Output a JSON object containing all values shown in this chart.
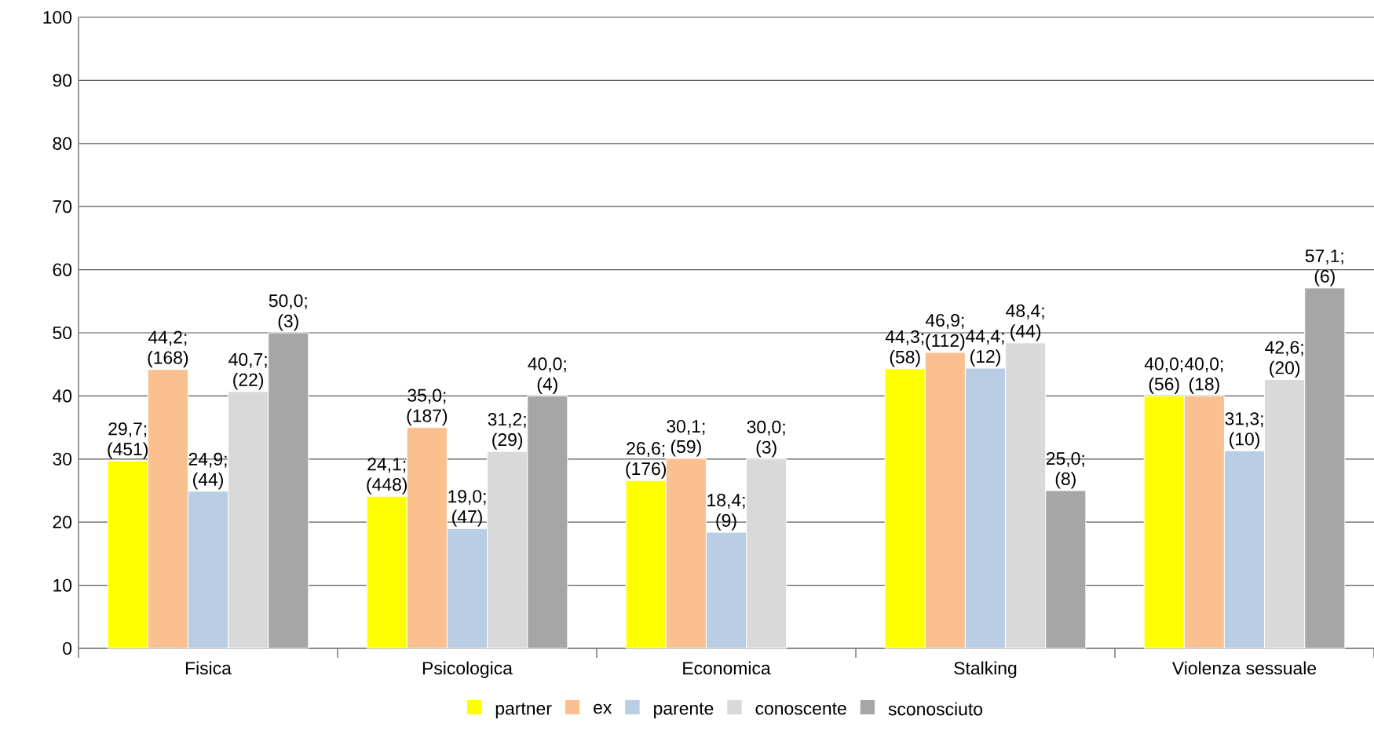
{
  "chart_data": {
    "type": "bar",
    "categories": [
      "Fisica",
      "Psicologica",
      "Economica",
      "Stalking",
      "Violenza sessuale"
    ],
    "series": [
      {
        "name": "partner",
        "color": "#ffff00",
        "values": [
          29.7,
          24.1,
          26.6,
          44.3,
          40.0
        ],
        "value_labels": [
          "29,7; (451)",
          "24,1; (448)",
          "26,6; (176)",
          "44,3; (58)",
          "40,0; (56)"
        ]
      },
      {
        "name": "ex",
        "color": "#fac090",
        "values": [
          44.2,
          35.0,
          30.1,
          46.9,
          40.0
        ],
        "value_labels": [
          "44,2; (168)",
          "35,0; (187)",
          "30,1; (59)",
          "46,9; (112)",
          "40,0; (18)"
        ]
      },
      {
        "name": "parente",
        "color": "#b9cde5",
        "values": [
          24.9,
          19.0,
          18.4,
          44.4,
          31.3
        ],
        "value_labels": [
          "24,9; (44)",
          "19,0; (47)",
          "18,4; (9)",
          "44,4; (12)",
          "31,3; (10)"
        ]
      },
      {
        "name": "conoscente",
        "color": "#d9d9d9",
        "values": [
          40.7,
          31.2,
          30.0,
          48.4,
          42.6
        ],
        "value_labels": [
          "40,7; (22)",
          "31,2; (29)",
          "30,0; (3)",
          "48,4; (44)",
          "42,6; (20)"
        ]
      },
      {
        "name": "sconosciuto",
        "color": "#a6a6a6",
        "values": [
          50.0,
          40.0,
          null,
          25.0,
          57.1
        ],
        "value_labels": [
          "50,0; (3)",
          "40,0; (4)",
          null,
          "25,0; (8)",
          "57,1; (6)"
        ]
      }
    ],
    "ylim": [
      0,
      100
    ],
    "yticks": [
      0,
      10,
      20,
      30,
      40,
      50,
      60,
      70,
      80,
      90,
      100
    ],
    "grid": "y",
    "legend": "bottom"
  }
}
